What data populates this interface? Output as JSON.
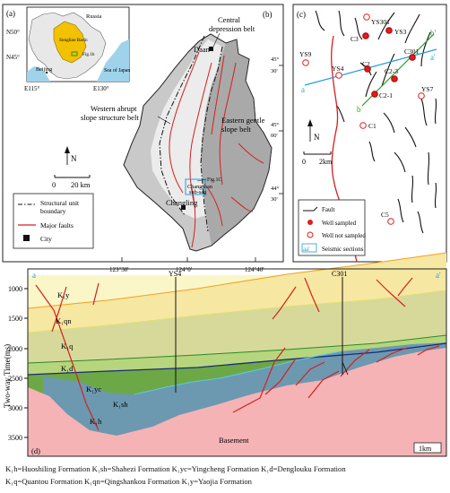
{
  "panel_a": {
    "label": "(a)",
    "places": {
      "russia": "Russia",
      "songliao": "Songliao Basin",
      "fig_ref": "Fig.1b",
      "beijing": "Beijing",
      "sea": "Sea of Japan"
    },
    "lat_labels": [
      "N50°",
      "N45°"
    ],
    "lon_labels": [
      "E115°",
      "E130°"
    ]
  },
  "panel_b": {
    "label": "(b)",
    "city_daan": "Daan",
    "city_changling": "Changling",
    "belt_central_1": "Central",
    "belt_central_2": "depression belt",
    "belt_west_1": "Western abrupt",
    "belt_west_2": "slope structure belt",
    "belt_east_1": "Eastern gentle",
    "belt_east_2": "slope belt",
    "fig_ref": "Fig.1C",
    "subsag_1": "Changshan",
    "subsag_2": "sub-sag",
    "north": "N",
    "scale": {
      "zero": "0",
      "dist": "20 km"
    },
    "lat_ticks": [
      {
        "deg": "45°",
        "min": "30'"
      },
      {
        "deg": "45°",
        "min": "00'"
      },
      {
        "deg": "44°",
        "min": "30'"
      }
    ],
    "lon_ticks": [
      "123°30'",
      "124°0'",
      "124°40'"
    ],
    "legend": {
      "boundary_1": "Structural unit",
      "boundary_2": "boundary",
      "faults": "Major faults",
      "city": "City"
    }
  },
  "panel_c": {
    "label": "(c)",
    "wells_sampled": [
      "YS301",
      "YS3",
      "C3",
      "C301",
      "C2",
      "C2-3",
      "C2-1"
    ],
    "wells_not_sampled": [
      "YS9",
      "YS4",
      "YS7",
      "C1",
      "C5"
    ],
    "section_labels": {
      "a": "a",
      "a_prime": "a'",
      "b": "b",
      "b_prime": "b'"
    },
    "north": "N",
    "scale": {
      "zero": "0",
      "dist": "2km"
    },
    "legend": {
      "fault": "Fault",
      "sampled": "Well sampled",
      "not_sampled": "Well not sampled",
      "seismic_symbol": "aa'",
      "seismic": "Seismic sections"
    }
  },
  "panel_d": {
    "label": "(d)",
    "end_a": "a",
    "end_a_prime": "a'",
    "wells": [
      "YS4",
      "C301"
    ],
    "ylabel": "Two-way Time(ms)",
    "yticks": [
      "1000",
      "1500",
      "2000",
      "2500",
      "3000",
      "3500"
    ],
    "formations": [
      {
        "code": "K₁y",
        "color": "#fbf6c8"
      },
      {
        "code": "K₁qn",
        "color": "#f6e8a2"
      },
      {
        "code": "K₁q",
        "color": "#d7d99a"
      },
      {
        "code": "K₁d",
        "color": "#b7d57d"
      },
      {
        "code": "K₁yc",
        "color": "#6ca845"
      },
      {
        "code": "K₁sh",
        "color": "#6d99b0"
      },
      {
        "code": "K₁h",
        "color": "#6d99b0"
      }
    ],
    "basement": "Basement",
    "basement_color": "#f5b3b5",
    "scale": "1km"
  },
  "caption": {
    "line1": "K₁h=Huoshiling Formation  K₁sh=Shahezi Formation  K₁yc=Yingcheng Formation  K₁d=Denglouku Formation",
    "line2": "K₁q=Quantou Formation  K₁qn=Qingshankou Formation  K₁y=Yaojia Formation"
  },
  "colors": {
    "fault": "#d42020",
    "well_sampled": "#e01c1c",
    "section": "#20a0d8",
    "line_b": "#20a020",
    "basin": "#f2c200"
  }
}
